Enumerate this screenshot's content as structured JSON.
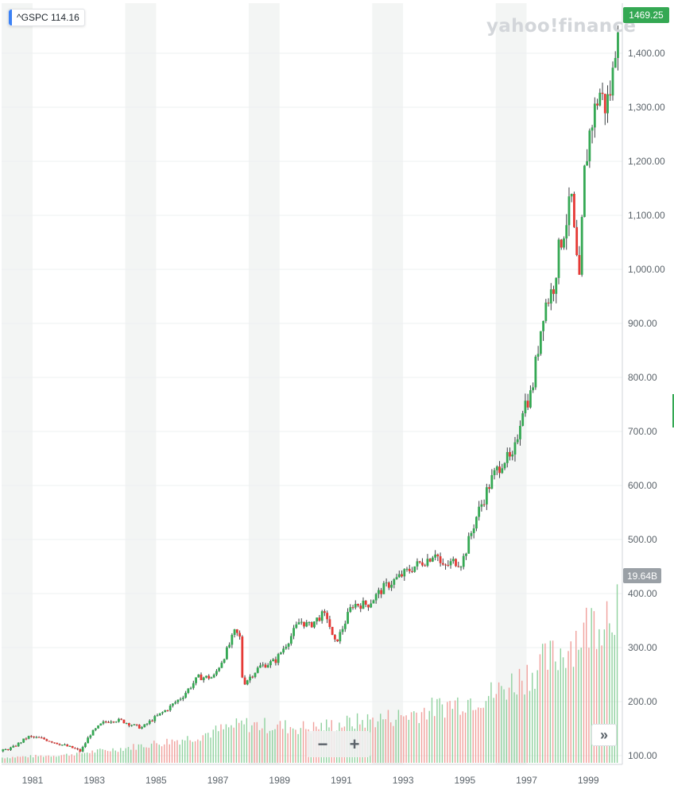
{
  "header": {
    "ticker_label": "^GSPC 114.16",
    "brand": "yahoo!finance",
    "last_price": "1469.25",
    "volume_tag": "19.64B"
  },
  "controls": {
    "zoom_out": "−",
    "zoom_in": "+",
    "scroll_right": "»"
  },
  "colors": {
    "up": "#34a853",
    "down": "#e53935",
    "wick": "#3c4043",
    "band": "#f3f5f4",
    "grid": "#eef0f2",
    "axis_text": "#5b636a"
  },
  "chart_data": {
    "type": "candlestick",
    "title": "",
    "xlabel": "",
    "ylabel": "",
    "x_range": [
      1980.0,
      2000.05
    ],
    "ylim": [
      85,
      1480
    ],
    "x_ticks": [
      "1981",
      "1983",
      "1985",
      "1987",
      "1989",
      "1991",
      "1993",
      "1995",
      "1997",
      "1999"
    ],
    "y_ticks": [
      "100.00",
      "200.00",
      "300.00",
      "400.00",
      "500.00",
      "600.00",
      "700.00",
      "800.00",
      "900.00",
      "1,000.00",
      "1,100.00",
      "1,200.00",
      "1,300.00",
      "1,400.00"
    ],
    "shaded_years": [
      1980,
      1984,
      1988,
      1992,
      1996
    ],
    "grid": true,
    "price_anchors": [
      [
        1980.0,
        108
      ],
      [
        1980.4,
        115
      ],
      [
        1980.9,
        135
      ],
      [
        1981.4,
        131
      ],
      [
        1981.9,
        122
      ],
      [
        1982.4,
        113
      ],
      [
        1982.6,
        108
      ],
      [
        1982.9,
        139
      ],
      [
        1983.3,
        160
      ],
      [
        1983.6,
        166
      ],
      [
        1983.9,
        165
      ],
      [
        1984.4,
        154
      ],
      [
        1984.6,
        152
      ],
      [
        1984.9,
        166
      ],
      [
        1985.4,
        186
      ],
      [
        1985.9,
        210
      ],
      [
        1986.4,
        245
      ],
      [
        1986.9,
        245
      ],
      [
        1987.3,
        290
      ],
      [
        1987.6,
        330
      ],
      [
        1987.75,
        318
      ],
      [
        1987.85,
        232
      ],
      [
        1988.4,
        265
      ],
      [
        1988.9,
        275
      ],
      [
        1989.4,
        320
      ],
      [
        1989.7,
        350
      ],
      [
        1990.0,
        340
      ],
      [
        1990.4,
        360
      ],
      [
        1990.6,
        356
      ],
      [
        1990.8,
        306
      ],
      [
        1991.0,
        325
      ],
      [
        1991.4,
        380
      ],
      [
        1991.9,
        380
      ],
      [
        1992.4,
        410
      ],
      [
        1992.9,
        430
      ],
      [
        1993.4,
        450
      ],
      [
        1993.9,
        466
      ],
      [
        1994.1,
        480
      ],
      [
        1994.3,
        446
      ],
      [
        1994.7,
        460
      ],
      [
        1994.95,
        457
      ],
      [
        1995.4,
        540
      ],
      [
        1995.9,
        610
      ],
      [
        1996.3,
        650
      ],
      [
        1996.6,
        645
      ],
      [
        1996.9,
        745
      ],
      [
        1997.2,
        770
      ],
      [
        1997.6,
        930
      ],
      [
        1997.9,
        965
      ],
      [
        1998.1,
        1040
      ],
      [
        1998.5,
        1130
      ],
      [
        1998.6,
        1050
      ],
      [
        1998.75,
        970
      ],
      [
        1998.9,
        1170
      ],
      [
        1999.1,
        1260
      ],
      [
        1999.4,
        1330
      ],
      [
        1999.6,
        1300
      ],
      [
        1999.8,
        1340
      ],
      [
        2000.0,
        1469
      ]
    ],
    "volume": {
      "label": "Volume",
      "last": "19.64B",
      "anchors": [
        [
          1980.0,
          0.03
        ],
        [
          1982.0,
          0.045
        ],
        [
          1984.0,
          0.085
        ],
        [
          1986.0,
          0.14
        ],
        [
          1987.8,
          0.22
        ],
        [
          1990.0,
          0.2
        ],
        [
          1993.0,
          0.27
        ],
        [
          1996.0,
          0.4
        ],
        [
          1998.0,
          0.62
        ],
        [
          2000.0,
          0.95
        ]
      ]
    }
  }
}
